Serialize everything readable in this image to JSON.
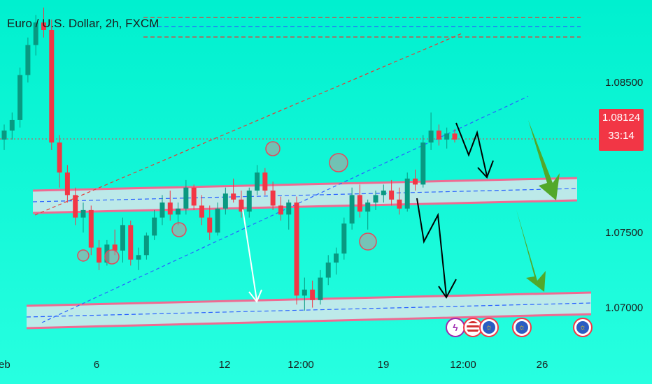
{
  "chart_title": "Euro / U.S. Dollar, 2h, FXCM",
  "price_tag": {
    "price": "1.08124",
    "countdown": "33:14",
    "color": "#f23645"
  },
  "colors": {
    "up": "#089981",
    "down": "#f23645",
    "zone_fill": "#d9e6ec",
    "zone_border": "#f06a92",
    "arrow_black": "#000000",
    "arrow_green": "#52a82a",
    "dashed_blue": "#2962ff",
    "dashed_red": "#e53935"
  },
  "event_icons": [
    "lightning-icon",
    "us-flag-icon",
    "eu-flag-icon",
    "eu-flag-icon",
    "eu-flag-icon"
  ],
  "chart_data": {
    "type": "candlestick",
    "title": "Euro / U.S. Dollar, 2h, FXCM",
    "y_axis": {
      "ticks": [
        1.085,
        1.075,
        1.07
      ],
      "tick_labels": [
        "1.08500",
        "1.07500",
        "1.07000"
      ],
      "range": [
        1.0677,
        1.0905
      ]
    },
    "x_axis": {
      "tick_labels": [
        "eb",
        "6",
        "12",
        "12:00",
        "19",
        "12:00",
        "26"
      ]
    },
    "last_price": 1.08124,
    "candles_ohlc": [
      [
        1.0812,
        1.0822,
        1.0805,
        1.0818
      ],
      [
        1.0818,
        1.083,
        1.0812,
        1.0825
      ],
      [
        1.0825,
        1.086,
        1.082,
        1.0855
      ],
      [
        1.0855,
        1.088,
        1.085,
        1.0875
      ],
      [
        1.0875,
        1.0895,
        1.0868,
        1.089
      ],
      [
        1.089,
        1.09,
        1.088,
        1.0885
      ],
      [
        1.0885,
        1.0892,
        1.0805,
        1.081
      ],
      [
        1.081,
        1.0815,
        1.078,
        1.079
      ],
      [
        1.079,
        1.0795,
        1.077,
        1.0775
      ],
      [
        1.0775,
        1.078,
        1.0755,
        1.076
      ],
      [
        1.076,
        1.077,
        1.075,
        1.0765
      ],
      [
        1.0765,
        1.0768,
        1.0735,
        1.074
      ],
      [
        1.074,
        1.0745,
        1.0725,
        1.073
      ],
      [
        1.073,
        1.0745,
        1.0728,
        1.0742
      ],
      [
        1.0742,
        1.0752,
        1.0735,
        1.0738
      ],
      [
        1.0738,
        1.076,
        1.073,
        1.0755
      ],
      [
        1.0755,
        1.0758,
        1.0728,
        1.0732
      ],
      [
        1.0732,
        1.074,
        1.0725,
        1.0735
      ],
      [
        1.0735,
        1.075,
        1.0732,
        1.0748
      ],
      [
        1.0748,
        1.0765,
        1.0745,
        1.076
      ],
      [
        1.076,
        1.0775,
        1.0755,
        1.077
      ],
      [
        1.077,
        1.0778,
        1.0758,
        1.0762
      ],
      [
        1.0762,
        1.077,
        1.0755,
        1.0766
      ],
      [
        1.0766,
        1.0785,
        1.0762,
        1.078
      ],
      [
        1.078,
        1.0782,
        1.0765,
        1.0768
      ],
      [
        1.0768,
        1.0775,
        1.0755,
        1.076
      ],
      [
        1.076,
        1.0768,
        1.0745,
        1.075
      ],
      [
        1.075,
        1.077,
        1.0748,
        1.0766
      ],
      [
        1.0766,
        1.078,
        1.0762,
        1.0776
      ],
      [
        1.0776,
        1.0786,
        1.077,
        1.0772
      ],
      [
        1.0772,
        1.0778,
        1.076,
        1.0764
      ],
      [
        1.0764,
        1.078,
        1.076,
        1.0778
      ],
      [
        1.0778,
        1.0795,
        1.0775,
        1.079
      ],
      [
        1.079,
        1.0793,
        1.0775,
        1.0778
      ],
      [
        1.0778,
        1.0784,
        1.0765,
        1.0768
      ],
      [
        1.0768,
        1.0774,
        1.0758,
        1.0762
      ],
      [
        1.0762,
        1.0772,
        1.0752,
        1.077
      ],
      [
        1.077,
        1.0774,
        1.0702,
        1.0708
      ],
      [
        1.0708,
        1.072,
        1.0698,
        1.0712
      ],
      [
        1.0712,
        1.0718,
        1.07,
        1.0705
      ],
      [
        1.0705,
        1.0725,
        1.0702,
        1.072
      ],
      [
        1.072,
        1.0735,
        1.0715,
        1.073
      ],
      [
        1.073,
        1.074,
        1.0722,
        1.0736
      ],
      [
        1.0736,
        1.076,
        1.0732,
        1.0756
      ],
      [
        1.0756,
        1.078,
        1.0752,
        1.0775
      ],
      [
        1.0775,
        1.0782,
        1.076,
        1.0764
      ],
      [
        1.0764,
        1.0772,
        1.0752,
        1.077
      ],
      [
        1.077,
        1.0778,
        1.0765,
        1.0775
      ],
      [
        1.0775,
        1.0782,
        1.077,
        1.0778
      ],
      [
        1.0778,
        1.0785,
        1.0768,
        1.0772
      ],
      [
        1.0772,
        1.078,
        1.0762,
        1.0766
      ],
      [
        1.0766,
        1.079,
        1.0764,
        1.0786
      ],
      [
        1.0786,
        1.0792,
        1.0778,
        1.0782
      ],
      [
        1.0782,
        1.0815,
        1.078,
        1.081
      ],
      [
        1.081,
        1.083,
        1.0805,
        1.0818
      ],
      [
        1.0818,
        1.0822,
        1.0808,
        1.0812
      ],
      [
        1.0812,
        1.082,
        1.0806,
        1.0816
      ],
      [
        1.0816,
        1.0819,
        1.081,
        1.0812
      ]
    ]
  }
}
